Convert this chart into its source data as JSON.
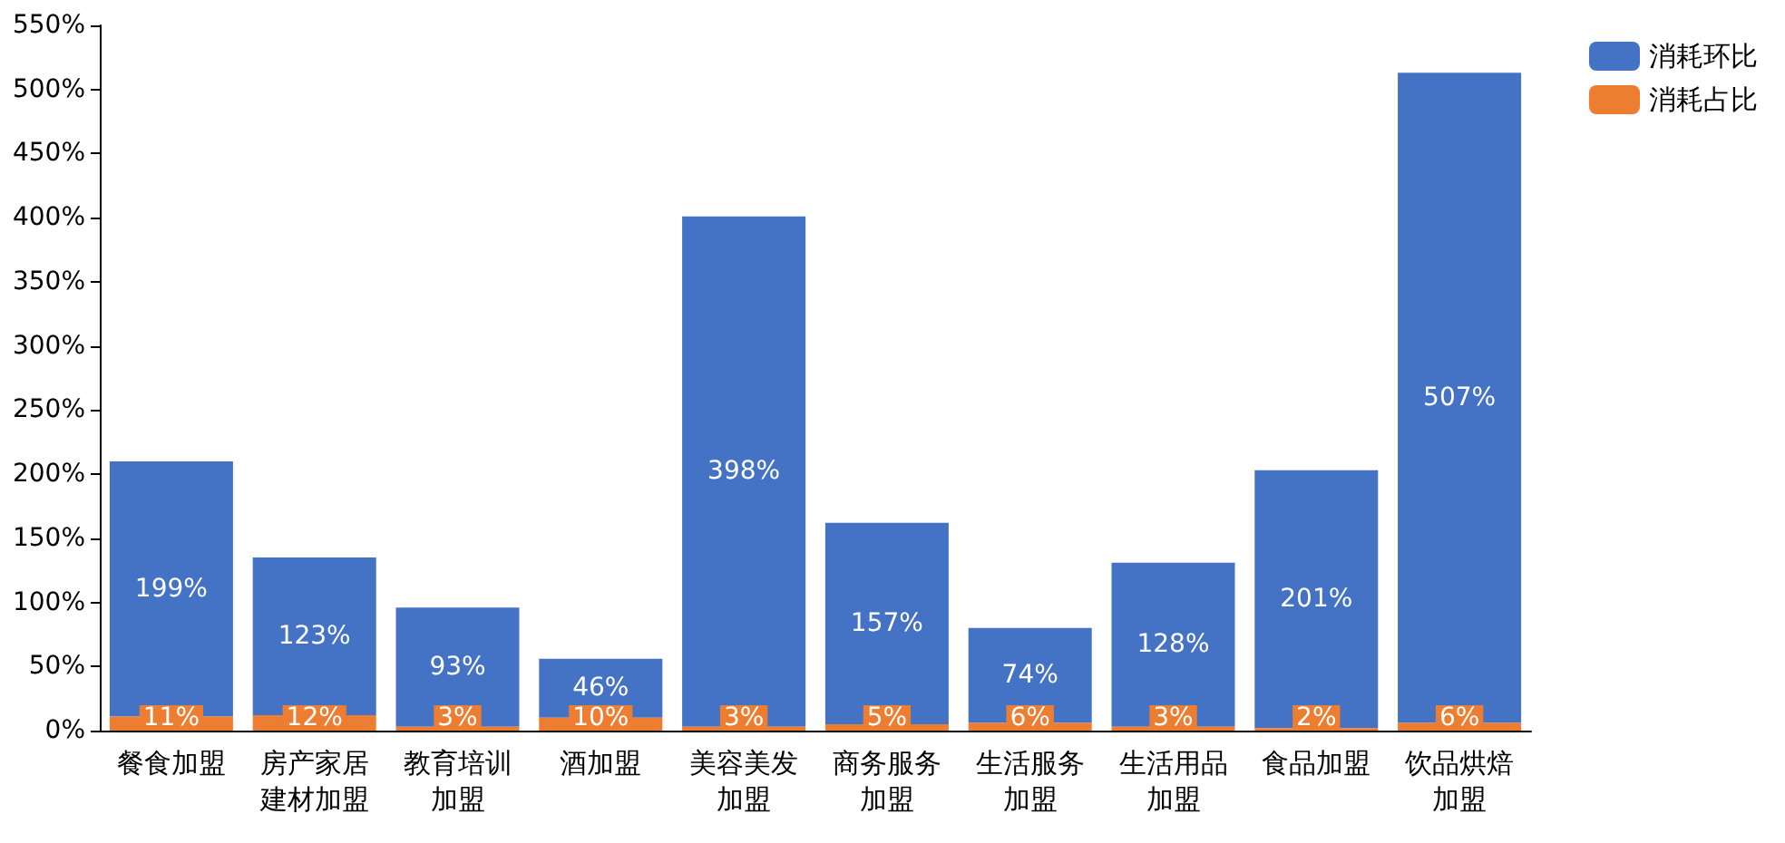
{
  "chart_data": {
    "type": "bar",
    "stacked": true,
    "categories": [
      "餐食加盟",
      "房产家居建材加盟",
      "教育培训加盟",
      "酒加盟",
      "美容美发加盟",
      "商务服务加盟",
      "生活服务加盟",
      "生活用品加盟",
      "食品加盟",
      "饮品烘焙加盟"
    ],
    "series": [
      {
        "name": "消耗占比",
        "color": "#ed7d31",
        "values": [
          11,
          12,
          3,
          10,
          3,
          5,
          6,
          3,
          2,
          6
        ],
        "value_labels": [
          "11%",
          "12%",
          "3%",
          "10%",
          "3%",
          "5%",
          "6%",
          "3%",
          "2%",
          "6%"
        ]
      },
      {
        "name": "消耗环比",
        "color": "#4472c4",
        "values": [
          199,
          123,
          93,
          46,
          398,
          157,
          74,
          128,
          201,
          507
        ],
        "value_labels": [
          "199%",
          "123%",
          "93%",
          "46%",
          "398%",
          "157%",
          "74%",
          "128%",
          "201%",
          "507%"
        ]
      }
    ],
    "ylim": [
      0,
      550
    ],
    "yticks": [
      {
        "value": 0,
        "label": "0%"
      },
      {
        "value": 50,
        "label": "50%"
      },
      {
        "value": 100,
        "label": "100%"
      },
      {
        "value": 150,
        "label": "150%"
      },
      {
        "value": 200,
        "label": "200%"
      },
      {
        "value": 250,
        "label": "250%"
      },
      {
        "value": 300,
        "label": "300%"
      },
      {
        "value": 350,
        "label": "350%"
      },
      {
        "value": 400,
        "label": "400%"
      },
      {
        "value": 450,
        "label": "450%"
      },
      {
        "value": 500,
        "label": "500%"
      },
      {
        "value": 550,
        "label": "550%"
      }
    ],
    "legend": "top right",
    "grid": false
  }
}
